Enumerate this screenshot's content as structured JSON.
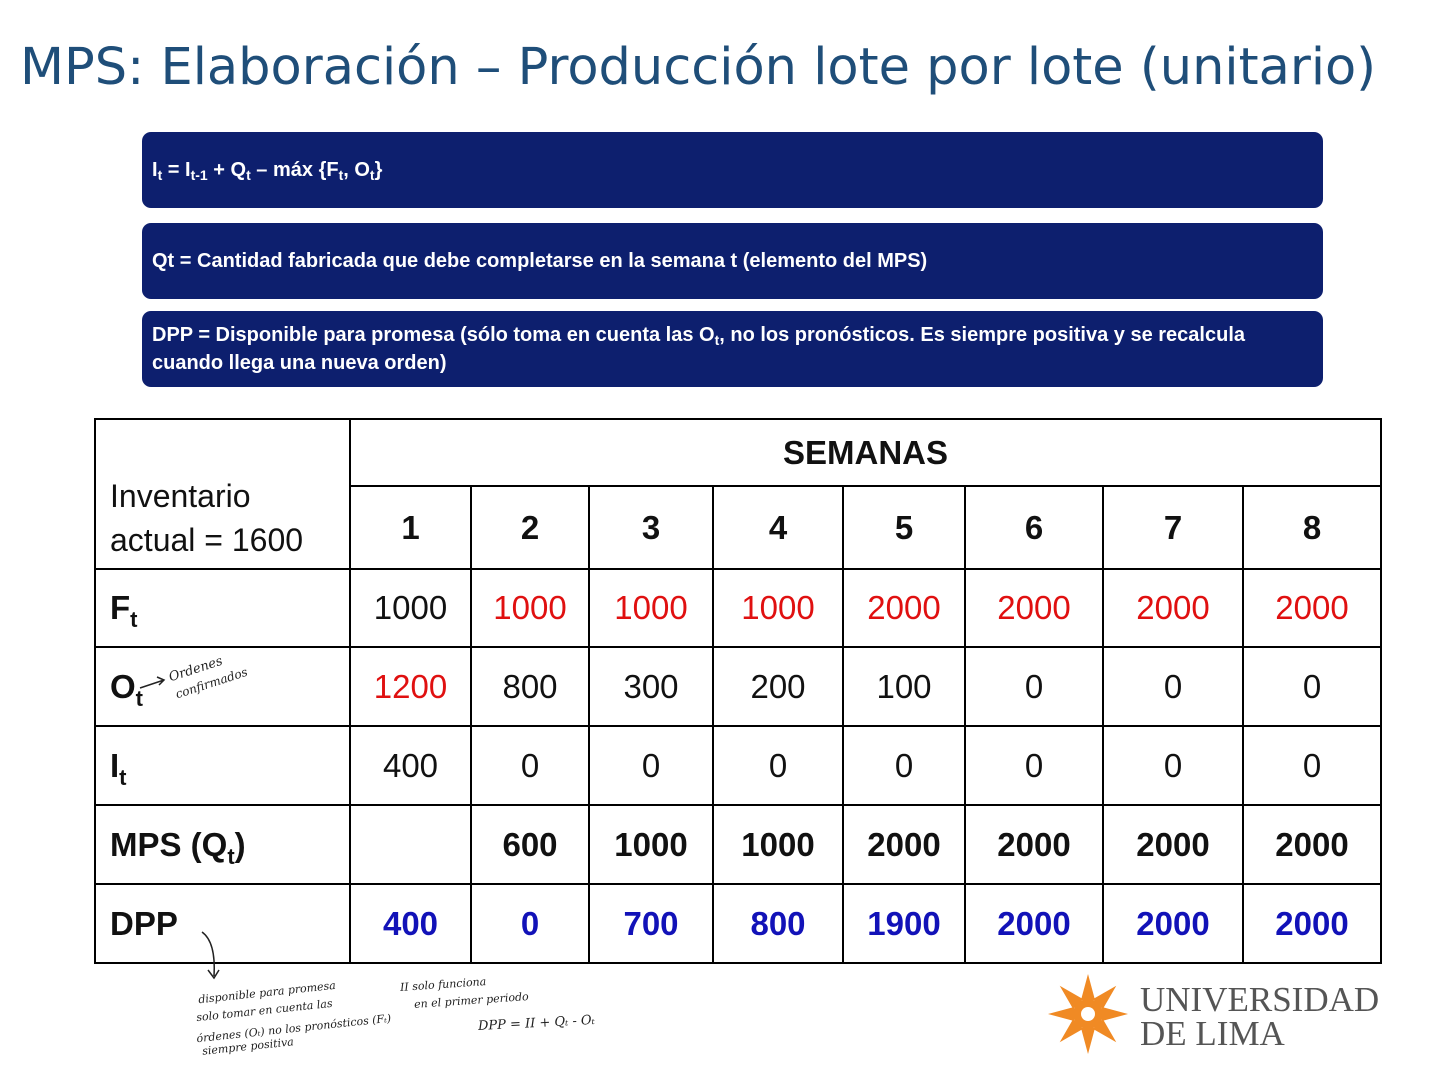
{
  "title": "MPS: Elaboración – Producción lote por lote (unitario)",
  "boxes": {
    "formula": {
      "I": "I",
      "t": "t",
      "eq": " = I",
      "tm1": "t-1",
      "plusQ": " + Q",
      "t2": "t",
      "rest": " – máx {F",
      "t3": "t",
      "comma": ", O",
      "t4": "t",
      "close": "}"
    },
    "qt_def": "Qt = Cantidad fabricada que debe completarse en la semana t (elemento del MPS)",
    "dpp_def_1": "DPP = Disponible para promesa (sólo toma en cuenta las O",
    "dpp_def_sub": "t",
    "dpp_def_2": ", no los pronósticos. Es siempre positiva y se recalcula cuando llega una nueva orden)"
  },
  "table": {
    "inventory_label_1": "Inventario",
    "inventory_label_2": "actual = 1600",
    "weeks_header": "SEMANAS",
    "weeks": [
      "1",
      "2",
      "3",
      "4",
      "5",
      "6",
      "7",
      "8"
    ],
    "rows": {
      "F": {
        "label": "F",
        "sub": "t",
        "values": [
          "1000",
          "1000",
          "1000",
          "1000",
          "2000",
          "2000",
          "2000",
          "2000"
        ]
      },
      "O": {
        "label": "O",
        "sub": "t",
        "values": [
          "1200",
          "800",
          "300",
          "200",
          "100",
          "0",
          "0",
          "0"
        ]
      },
      "I": {
        "label": "I",
        "sub": "t",
        "values": [
          "400",
          "0",
          "0",
          "0",
          "0",
          "0",
          "0",
          "0"
        ]
      },
      "MPS": {
        "label": "MPS (Q",
        "sub": "t",
        "close": ")",
        "values": [
          "",
          "600",
          "1000",
          "1000",
          "2000",
          "2000",
          "2000",
          "2000"
        ]
      },
      "DPP": {
        "label": "DPP",
        "values": [
          "400",
          "0",
          "700",
          "800",
          "1900",
          "2000",
          "2000",
          "2000"
        ]
      }
    },
    "colors": {
      "red": "#e01010",
      "blue": "#1212b8",
      "black": "#111111"
    }
  },
  "handwritten": {
    "ordenes_1": "Ordenes",
    "ordenes_2": "confirmados",
    "note_dpp_1": "disponible para promesa",
    "note_dpp_2": "solo tomar en cuenta las",
    "note_dpp_3": "órdenes (Oₜ) no los pronósticos (Fₜ)",
    "note_dpp_4": "siempre positiva",
    "note_ii_1": "II solo funciona",
    "note_ii_2": "en el primer periodo",
    "note_formula": "DPP = II + Qₜ - Oₜ"
  },
  "logo": {
    "line1": "UNIVERSIDAD",
    "line2": "DE LIMA",
    "color": "#f08a24"
  }
}
